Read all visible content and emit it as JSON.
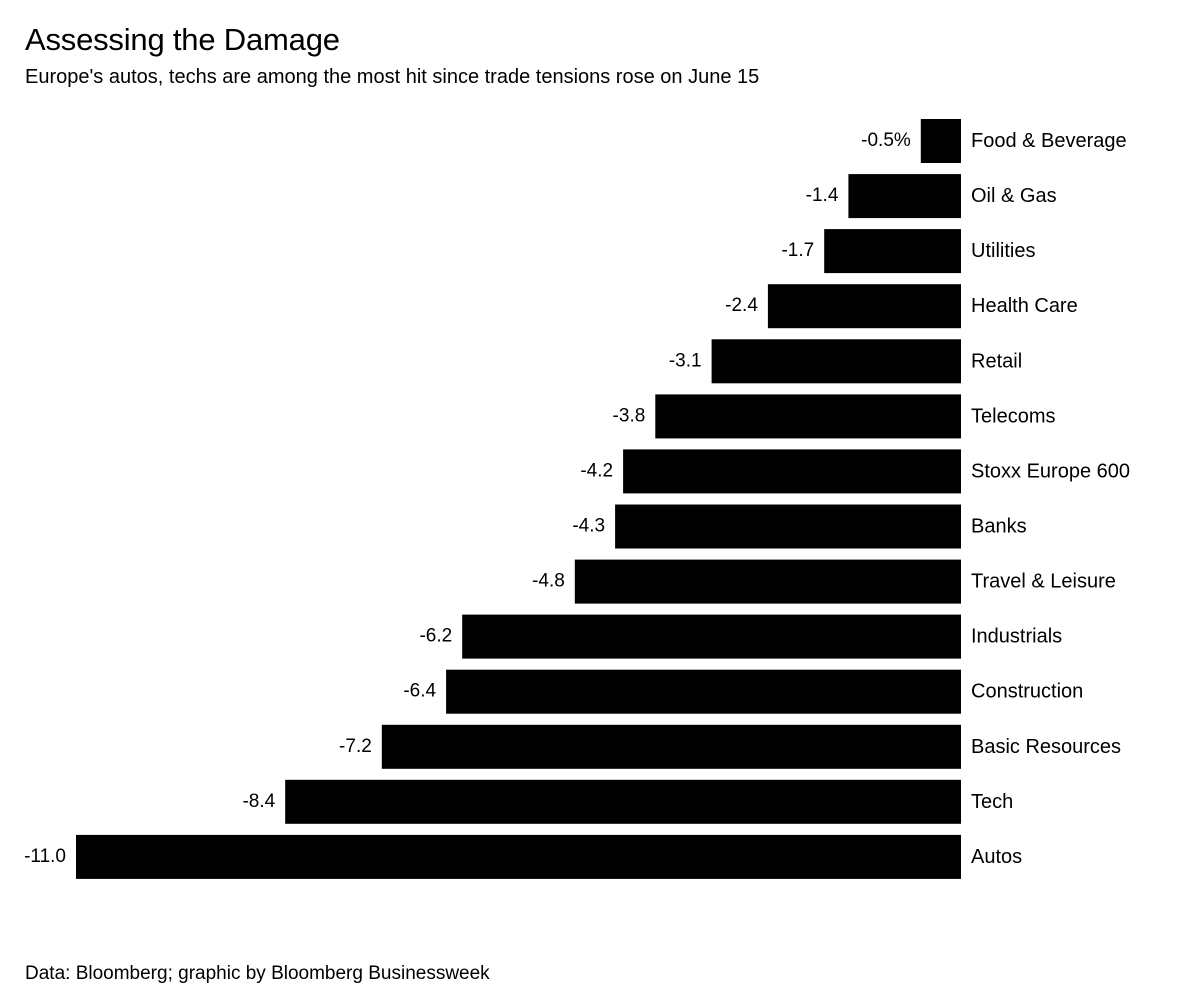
{
  "header": {
    "title": "Assessing the Damage",
    "subtitle": "Europe's autos, techs are among the most hit since trade tensions rose on June 15"
  },
  "footer": {
    "source": "Data: Bloomberg; graphic by Bloomberg Businessweek"
  },
  "chart_data": {
    "type": "bar",
    "orientation": "horizontal",
    "categories": [
      "Food & Beverage",
      "Oil & Gas",
      "Utilities",
      "Health Care",
      "Retail",
      "Telecoms",
      "Stoxx Europe 600",
      "Banks",
      "Travel & Leisure",
      "Industrials",
      "Construction",
      "Basic Resources",
      "Tech",
      "Autos"
    ],
    "values": [
      -0.5,
      -1.4,
      -1.7,
      -2.4,
      -3.1,
      -3.8,
      -4.2,
      -4.3,
      -4.8,
      -6.2,
      -6.4,
      -7.2,
      -8.4,
      -11.0
    ],
    "value_labels": [
      "-0.5%",
      "-1.4",
      "-1.7",
      "-2.4",
      "-3.1",
      "-3.8",
      "-4.2",
      "-4.3",
      "-4.8",
      "-6.2",
      "-6.4",
      "-7.2",
      "-8.4",
      "-11.0"
    ],
    "unit": "%",
    "xlim": [
      -11.0,
      0
    ],
    "bar_color": "#000000",
    "grid": false,
    "legend": "none"
  }
}
